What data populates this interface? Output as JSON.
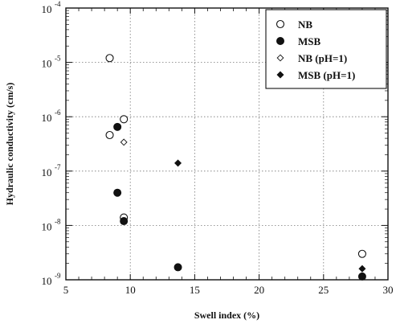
{
  "chart_data": {
    "type": "scatter",
    "xlabel": "Swell index (%)",
    "ylabel": "Hydraulic conductivity (cm/s)",
    "xlim": [
      5,
      30
    ],
    "ylim": [
      1e-09,
      0.0001
    ],
    "yscale": "log",
    "grid": true,
    "legend_position": "top-right",
    "x_ticks": [
      {
        "value": 5,
        "label": "5"
      },
      {
        "value": 10,
        "label": "10"
      },
      {
        "value": 15,
        "label": "15"
      },
      {
        "value": 20,
        "label": "20"
      },
      {
        "value": 25,
        "label": "25"
      },
      {
        "value": 30,
        "label": "30"
      }
    ],
    "y_ticks": [
      {
        "value": 1e-09,
        "base": "10",
        "exp": "-9"
      },
      {
        "value": 1e-08,
        "base": "10",
        "exp": "-8"
      },
      {
        "value": 1e-07,
        "base": "10",
        "exp": "-7"
      },
      {
        "value": 1e-06,
        "base": "10",
        "exp": "-6"
      },
      {
        "value": 1e-05,
        "base": "10",
        "exp": "-5"
      },
      {
        "value": 0.0001,
        "base": "10",
        "exp": "-4"
      }
    ],
    "series": [
      {
        "name": "NB",
        "marker": "circle-open",
        "points": [
          [
            8.4,
            1.2e-05
          ],
          [
            9.5,
            9e-07
          ],
          [
            8.4,
            4.6e-07
          ],
          [
            9.5,
            1.4e-08
          ],
          [
            28.0,
            3e-09
          ]
        ]
      },
      {
        "name": "MSB",
        "marker": "circle-filled",
        "points": [
          [
            9.0,
            6.5e-07
          ],
          [
            9.0,
            4e-08
          ],
          [
            9.5,
            1.2e-08
          ],
          [
            13.7,
            1.7e-09
          ],
          [
            28.0,
            1.15e-09
          ]
        ]
      },
      {
        "name": "NB (pH=1)",
        "marker": "diamond-open",
        "points": [
          [
            9.5,
            3.4e-07
          ]
        ]
      },
      {
        "name": "MSB (pH=1)",
        "marker": "diamond-filled",
        "points": [
          [
            13.7,
            1.4e-07
          ],
          [
            28.0,
            1.6e-09
          ]
        ]
      }
    ]
  }
}
